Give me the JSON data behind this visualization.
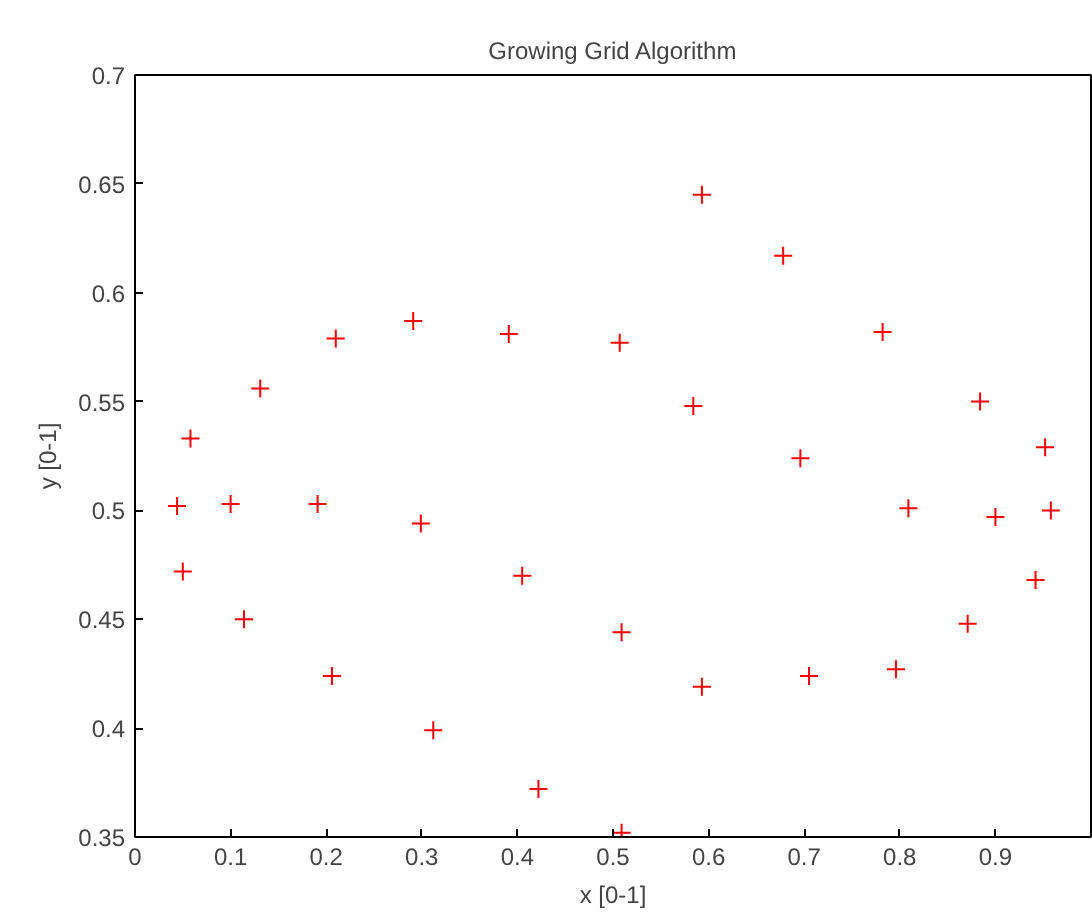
{
  "chart_data": {
    "type": "scatter",
    "title": "Growing Grid Algorithm",
    "xlabel": "x [0-1]",
    "ylabel": "y [0-1]",
    "xlim": [
      0,
      1
    ],
    "ylim": [
      0.35,
      0.7
    ],
    "xticks": [
      0,
      0.1,
      0.2,
      0.3,
      0.4,
      0.5,
      0.6,
      0.7,
      0.8,
      0.9
    ],
    "yticks": [
      0.35,
      0.4,
      0.45,
      0.5,
      0.55,
      0.6,
      0.65,
      0.7
    ],
    "grid": false,
    "marker": "cross",
    "series": [
      {
        "color": "#ff0000",
        "x": [
          0.058,
          0.131,
          0.21,
          0.291,
          0.391,
          0.507,
          0.593,
          0.678,
          0.782,
          0.584,
          0.884,
          0.696,
          0.952,
          0.809,
          0.044,
          0.1,
          0.191,
          0.299,
          0.05,
          0.114,
          0.405,
          0.206,
          0.312,
          0.422,
          0.9,
          0.958,
          0.942,
          0.509,
          0.871,
          0.593,
          0.705,
          0.796,
          0.509
        ],
        "values": [
          0.533,
          0.556,
          0.579,
          0.587,
          0.581,
          0.577,
          0.645,
          0.617,
          0.582,
          0.548,
          0.55,
          0.524,
          0.529,
          0.501,
          0.502,
          0.503,
          0.503,
          0.494,
          0.472,
          0.45,
          0.47,
          0.424,
          0.399,
          0.372,
          0.497,
          0.5,
          0.468,
          0.444,
          0.448,
          0.419,
          0.424,
          0.427,
          0.352
        ]
      }
    ]
  }
}
